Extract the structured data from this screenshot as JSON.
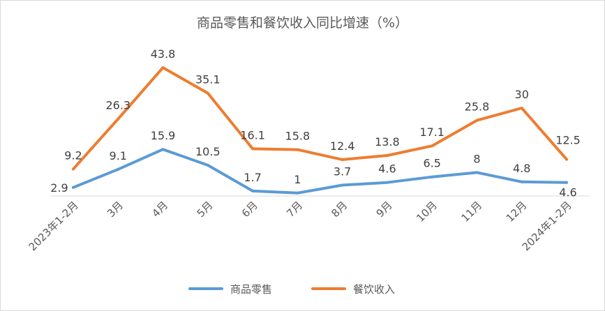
{
  "chart_data": {
    "type": "line",
    "title": "商品零售和餐饮收入同比增速（%）",
    "categories": [
      "2023年1-2月",
      "3月",
      "4月",
      "5月",
      "6月",
      "7月",
      "8月",
      "9月",
      "10月",
      "11月",
      "12月",
      "2024年1-2月"
    ],
    "series": [
      {
        "name": "商品零售",
        "color": "#5b9bd5",
        "values": [
          2.9,
          9.1,
          15.9,
          10.5,
          1.7,
          1,
          3.7,
          4.6,
          6.5,
          8,
          4.8,
          4.6
        ]
      },
      {
        "name": "餐饮收入",
        "color": "#ed7d31",
        "values": [
          9.2,
          26.3,
          43.8,
          35.1,
          16.1,
          15.8,
          12.4,
          13.8,
          17.1,
          25.8,
          30,
          12.5
        ]
      }
    ],
    "ylim": [
      0,
      50
    ],
    "grid": false,
    "legend": "bottom",
    "xlabel": "",
    "ylabel": ""
  }
}
